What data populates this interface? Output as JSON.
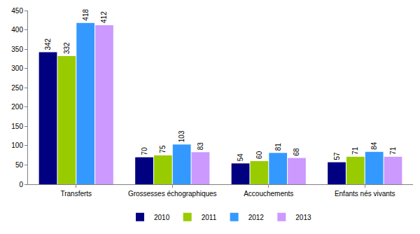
{
  "chart_data": {
    "type": "bar",
    "categories": [
      "Transferts",
      "Grossesses échographiques",
      "Accouchements",
      "Enfants nés vivants"
    ],
    "series": [
      {
        "name": "2010",
        "color": "#000080",
        "values": [
          342,
          70,
          54,
          57
        ]
      },
      {
        "name": "2011",
        "color": "#99cc00",
        "values": [
          332,
          75,
          60,
          71
        ]
      },
      {
        "name": "2012",
        "color": "#3399ff",
        "values": [
          418,
          103,
          81,
          84
        ]
      },
      {
        "name": "2013",
        "color": "#cc99ff",
        "values": [
          412,
          83,
          68,
          71
        ]
      }
    ],
    "ylim": [
      0,
      450
    ],
    "yticks": [
      0,
      50,
      100,
      150,
      200,
      250,
      300,
      350,
      400,
      450
    ],
    "grid": false,
    "legend": "bottom",
    "data_labels": true
  }
}
